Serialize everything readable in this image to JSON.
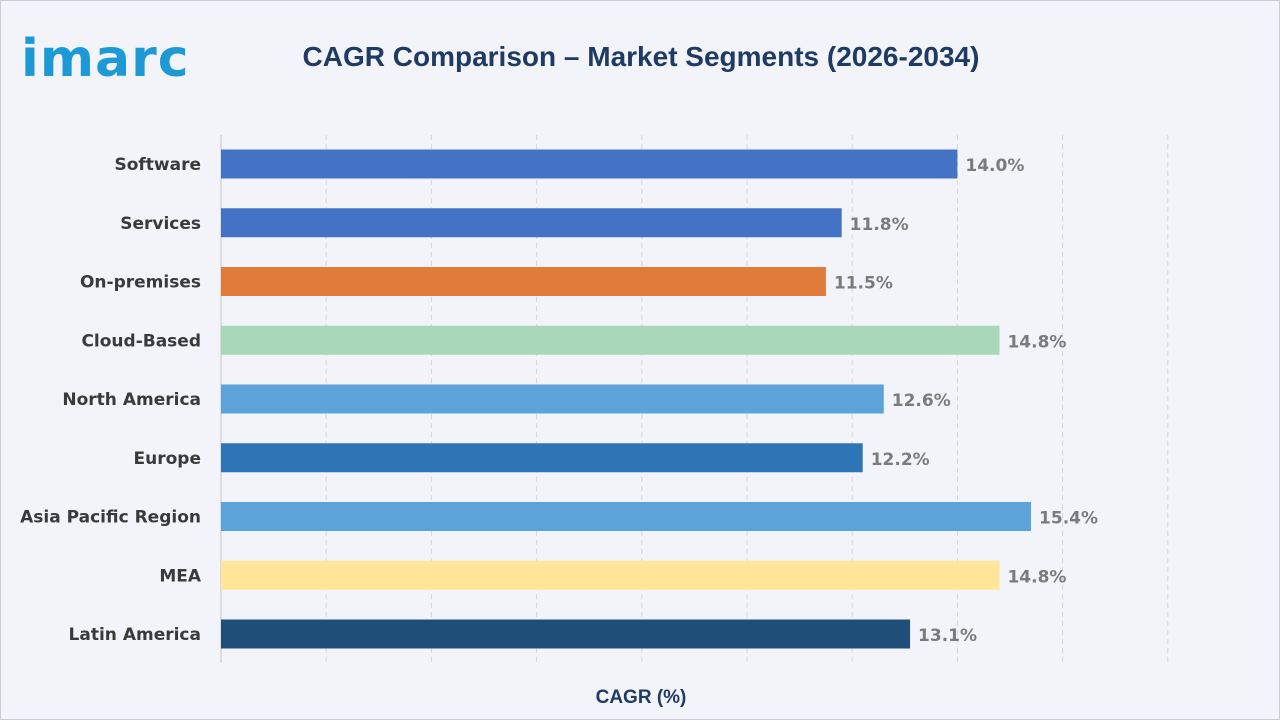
{
  "brand": {
    "logo_text": "imarc",
    "logo_color": "#1d9ad6"
  },
  "chart_data": {
    "type": "bar",
    "orientation": "horizontal",
    "title": "CAGR Comparison – Market Segments (2026-2034)",
    "xlabel": "CAGR (%)",
    "ylabel": "",
    "xlim": [
      0,
      18
    ],
    "grid": "vertical dashed",
    "categories": [
      "Software",
      "Services",
      "On-premises",
      "Cloud-Based",
      "North America",
      "Europe",
      "Asia Pacific Region",
      "MEA",
      "Latin America"
    ],
    "values": [
      14.0,
      11.8,
      11.5,
      14.8,
      12.6,
      12.2,
      15.4,
      14.8,
      13.1
    ],
    "value_labels": [
      "14.0%",
      "11.8%",
      "11.5%",
      "14.8%",
      "12.6%",
      "12.2%",
      "15.4%",
      "14.8%",
      "13.1%"
    ],
    "colors": [
      "#4472c4",
      "#4472c4",
      "#e07b39",
      "#a9d8b8",
      "#5ba3d9",
      "#2e75b6",
      "#5ba3d9",
      "#ffe699",
      "#1f4e79"
    ]
  }
}
